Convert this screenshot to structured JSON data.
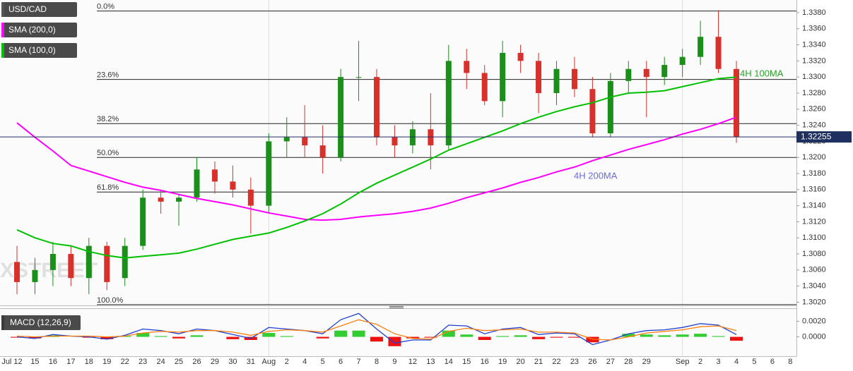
{
  "chart_data": [
    {
      "type": "candlestick",
      "watermark": "FXSTREET",
      "categories": [
        "Jul 12",
        "15",
        "16",
        "17",
        "18",
        "19",
        "22",
        "23",
        "24",
        "25",
        "26",
        "29",
        "30",
        "31",
        "Aug",
        "2",
        "4",
        "5",
        "6",
        "7",
        "8",
        "9",
        "12",
        "13",
        "14",
        "15",
        "16",
        "19",
        "20",
        "21",
        "22",
        "23",
        "26",
        "27",
        "28",
        "29",
        null,
        "Sep",
        "2",
        "3",
        "4",
        "5",
        "6",
        "8"
      ],
      "series": [
        {
          "name": "USD/CAD",
          "type": "candlestick",
          "color": "#555555",
          "up_color": "#1a8f1a",
          "down_color": "#d9302c",
          "open": [
            1.307,
            1.3045,
            1.306,
            1.308,
            1.305,
            1.309,
            1.305,
            1.309,
            1.315,
            1.3145,
            1.315,
            1.3185,
            1.317,
            1.316,
            1.314,
            1.322,
            1.3225,
            1.3215,
            1.32,
            1.33,
            1.33,
            1.3225,
            1.3215,
            1.3235,
            1.3215,
            1.332,
            1.3305,
            1.327,
            1.333,
            1.332,
            1.328,
            1.331,
            1.3285,
            1.323,
            1.3295,
            1.331,
            1.33,
            1.3315,
            1.3325,
            1.335,
            1.331,
            null,
            null,
            null
          ],
          "high": [
            1.309,
            1.3075,
            1.3095,
            1.309,
            1.31,
            1.3095,
            1.31,
            1.316,
            1.316,
            1.3155,
            1.32,
            1.3195,
            1.319,
            1.3175,
            1.323,
            1.325,
            1.3265,
            1.324,
            1.331,
            1.3345,
            1.331,
            1.324,
            1.3245,
            1.328,
            1.334,
            1.3335,
            1.3315,
            1.3345,
            1.334,
            1.333,
            1.332,
            1.3325,
            1.33,
            1.3305,
            1.332,
            1.332,
            1.3325,
            1.3335,
            1.337,
            1.3383,
            1.332,
            null,
            null,
            null
          ],
          "low": [
            1.303,
            1.303,
            1.304,
            1.304,
            1.303,
            1.3035,
            1.304,
            1.3085,
            1.313,
            1.3115,
            1.3145,
            1.3155,
            1.315,
            1.3105,
            1.313,
            1.32,
            1.32,
            1.318,
            1.3195,
            1.327,
            1.3215,
            1.32,
            1.3205,
            1.3185,
            1.321,
            1.3285,
            1.3265,
            1.325,
            1.3305,
            1.3255,
            1.3265,
            1.3275,
            1.3225,
            1.3225,
            1.328,
            1.325,
            1.329,
            1.33,
            1.3315,
            1.3305,
            1.3218,
            null,
            null,
            null
          ],
          "close": [
            1.3045,
            1.306,
            1.308,
            1.305,
            1.309,
            1.3045,
            1.309,
            1.315,
            1.3145,
            1.315,
            1.3185,
            1.317,
            1.316,
            1.314,
            1.322,
            1.3225,
            1.3215,
            1.32,
            1.33,
            1.33,
            1.3225,
            1.3215,
            1.3235,
            1.3215,
            1.332,
            1.3305,
            1.327,
            1.333,
            1.332,
            1.328,
            1.331,
            1.3285,
            1.323,
            1.3295,
            1.331,
            1.33,
            1.3315,
            1.3325,
            1.335,
            1.331,
            1.32255,
            null,
            null,
            null
          ]
        },
        {
          "name": "SMA (200,0)",
          "type": "line",
          "color": "#ff00ff",
          "values": [
            1.3243,
            1.3225,
            1.3208,
            1.319,
            1.3183,
            1.3176,
            1.3169,
            1.3163,
            1.3159,
            1.3154,
            1.3149,
            1.3145,
            1.3141,
            1.3136,
            1.3131,
            1.3127,
            1.3123,
            1.3122,
            1.3123,
            1.3126,
            1.3128,
            1.313,
            1.3133,
            1.3137,
            1.3143,
            1.315,
            1.3156,
            1.3162,
            1.3169,
            1.3175,
            1.3182,
            1.3188,
            1.3196,
            1.3203,
            1.321,
            1.3216,
            1.3222,
            1.3229,
            1.3235,
            1.3242,
            1.325,
            null,
            null,
            null
          ]
        },
        {
          "name": "SMA (100,0)",
          "type": "line",
          "color": "#00c000",
          "values": [
            1.311,
            1.31,
            1.3093,
            1.309,
            1.3083,
            1.3078,
            1.3075,
            1.3077,
            1.3079,
            1.3081,
            1.3086,
            1.3092,
            1.3098,
            1.3102,
            1.3106,
            1.3113,
            1.3121,
            1.313,
            1.3142,
            1.3156,
            1.3168,
            1.3178,
            1.3188,
            1.3198,
            1.3209,
            1.3217,
            1.3225,
            1.3233,
            1.3242,
            1.325,
            1.3257,
            1.3263,
            1.3268,
            1.3275,
            1.328,
            1.3281,
            1.3283,
            1.3288,
            1.3293,
            1.3298,
            1.33,
            null,
            null,
            null
          ]
        }
      ],
      "ylim": [
        1.3016,
        1.3394
      ],
      "yticks": [
        {
          "value": 1.302,
          "label": "1.3020"
        },
        {
          "value": 1.304,
          "label": "1.3040"
        },
        {
          "value": 1.306,
          "label": "1.3060"
        },
        {
          "value": 1.308,
          "label": "1.3080"
        },
        {
          "value": 1.31,
          "label": "1.3100"
        },
        {
          "value": 1.312,
          "label": "1.3120"
        },
        {
          "value": 1.314,
          "label": "1.3140"
        },
        {
          "value": 1.316,
          "label": "1.3160"
        },
        {
          "value": 1.318,
          "label": "1.3180"
        },
        {
          "value": 1.32,
          "label": "1.3200"
        },
        {
          "value": 1.322,
          "label": "1.3220"
        },
        {
          "value": 1.324,
          "label": "1.3240"
        },
        {
          "value": 1.326,
          "label": "1.3260"
        },
        {
          "value": 1.328,
          "label": "1.3280"
        },
        {
          "value": 1.33,
          "label": "1.3300"
        },
        {
          "value": 1.332,
          "label": "1.3320"
        },
        {
          "value": 1.334,
          "label": "1.3340"
        },
        {
          "value": 1.336,
          "label": "1.3360"
        },
        {
          "value": 1.338,
          "label": "1.3380"
        }
      ],
      "fib_levels": [
        {
          "label": "0.0%",
          "value": 1.3382
        },
        {
          "label": "23.6%",
          "value": 1.3297
        },
        {
          "label": "38.2%",
          "value": 1.3242
        },
        {
          "label": "50.0%",
          "value": 1.32
        },
        {
          "label": "61.8%",
          "value": 1.3157
        },
        {
          "label": "100.0%",
          "value": 1.3017
        }
      ],
      "last_price": 1.32255,
      "last_price_color": "#1f2f5f",
      "annotations": [
        {
          "text": "4H 100MA",
          "color": "#22aa22"
        },
        {
          "text": "4H 200MA",
          "color": "#6b6bdd"
        }
      ]
    },
    {
      "type": "macd",
      "title": "MACD (12,26,9)",
      "macd_color": "#1f3fd1",
      "signal_color": "#ff7f0e",
      "pos_color": "#33cc33",
      "neg_color": "#ee1111",
      "macd": [
        0.0,
        -0.0002,
        0.0003,
        0.0001,
        0.0,
        -0.0003,
        0.0002,
        0.001,
        0.0008,
        0.0004,
        0.001,
        0.0008,
        0.0003,
        -0.0002,
        0.0012,
        0.001,
        0.0008,
        0.0004,
        0.0022,
        0.003,
        0.001,
        -0.0008,
        -0.0004,
        -0.0004,
        0.0015,
        0.0014,
        0.0004,
        0.001,
        0.0012,
        0.0003,
        0.0005,
        0.0004,
        -0.001,
        -0.0004,
        0.0004,
        0.0008,
        0.0009,
        0.0012,
        0.0017,
        0.0015,
        0.0003,
        null,
        null,
        null
      ],
      "signal": [
        0.0001,
        0.0,
        0.0001,
        0.0001,
        0.0001,
        0.0,
        0.0001,
        0.0005,
        0.0007,
        0.0006,
        0.0008,
        0.0008,
        0.0006,
        0.0002,
        0.0007,
        0.0009,
        0.0008,
        0.0006,
        0.0014,
        0.0022,
        0.0016,
        0.0004,
        -0.0002,
        -0.0003,
        0.0007,
        0.0011,
        0.0008,
        0.0009,
        0.001,
        0.0006,
        0.0006,
        0.0005,
        -0.0003,
        -0.0004,
        0.0,
        0.0005,
        0.0007,
        0.0009,
        0.0013,
        0.0014,
        0.0008,
        null,
        null,
        null
      ],
      "histogram": [
        -0.0001,
        -0.0002,
        0.0002,
        0.0,
        -0.0001,
        -0.0003,
        0.0001,
        0.0005,
        0.0001,
        -0.0002,
        0.0002,
        0.0,
        -0.0003,
        -0.0004,
        0.0005,
        0.0001,
        0.0,
        -0.0002,
        0.0008,
        0.0008,
        -0.0006,
        -0.0012,
        -0.0002,
        -0.0001,
        0.0008,
        0.0003,
        -0.0004,
        0.0001,
        0.0002,
        -0.0003,
        -0.0001,
        -0.0001,
        -0.0007,
        0.0,
        0.0004,
        0.0003,
        0.0002,
        0.0003,
        0.0004,
        0.0001,
        -0.0005,
        null,
        null,
        null
      ],
      "ylim": [
        -0.0023,
        0.0034
      ],
      "yticks": [
        {
          "value": 0.002,
          "label": "0.0020"
        },
        {
          "value": 0,
          "label": "0.0000"
        }
      ]
    }
  ]
}
